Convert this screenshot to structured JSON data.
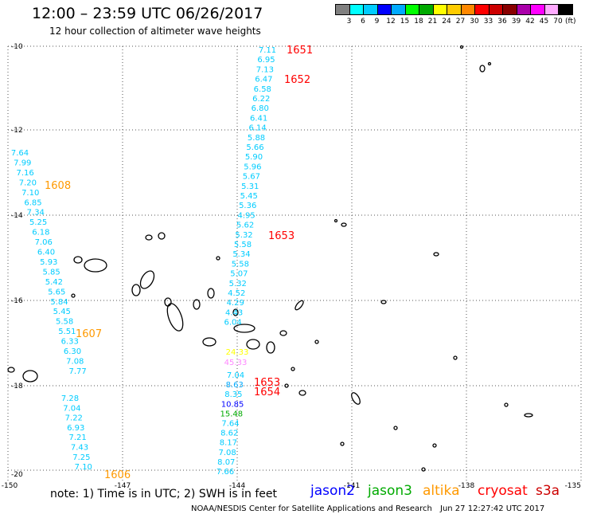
{
  "header": {
    "title": "12:00 – 23:59 UTC 06/26/2017",
    "subtitle": "12 hour collection of altimeter wave heights"
  },
  "colorbar": {
    "unit": "(ft)",
    "colors": [
      "#808080",
      "#00ffff",
      "#00ccff",
      "#0000ff",
      "#00aaff",
      "#00ff00",
      "#00aa00",
      "#ffff00",
      "#ffcc00",
      "#ff8800",
      "#ff0000",
      "#cc0000",
      "#880000",
      "#aa00aa",
      "#ff00ff",
      "#ffaaff",
      "#000000"
    ],
    "labels": [
      "3",
      "6",
      "9",
      "12",
      "15",
      "18",
      "21",
      "24",
      "27",
      "30",
      "33",
      "36",
      "39",
      "42",
      "45",
      "70"
    ]
  },
  "axes": {
    "lat_labels": [
      "-10",
      "-12",
      "-14",
      "-16",
      "-18",
      "-20"
    ],
    "lon_labels": [
      "-150",
      "-147",
      "-144",
      "-141",
      "-138",
      "-135"
    ]
  },
  "tracks": {
    "track_1652": {
      "color": "#00ccff",
      "values": [
        "7.11",
        "6.95",
        "7.13",
        "6.47",
        "6.58",
        "6.22",
        "6.80",
        "6.41",
        "6.14",
        "5.88",
        "5.66",
        "5.90",
        "5.96",
        "5.67",
        "5.31",
        "5.45",
        "5.36",
        "4.95",
        "5.62",
        "5.32",
        "5.58",
        "5.34",
        "5.58",
        "5.07",
        "5.32",
        "4.52",
        "4.29",
        "4.43",
        "6.04"
      ]
    },
    "track_1608": {
      "color": "#00ccff",
      "values": [
        "7.64",
        "7.99",
        "7.16",
        "7.20",
        "7.10",
        "6.85",
        "7.34",
        "5.25",
        "6.18",
        "7.06",
        "6.40",
        "5.93",
        "5.85",
        "5.42",
        "5.65",
        "5.84",
        "5.45",
        "5.58",
        "5.51",
        "6.33",
        "6.30",
        "7.08",
        "7.77"
      ]
    },
    "track_1606": {
      "color": "#00ccff",
      "values": [
        "7.28",
        "7.04",
        "7.22",
        "6.93",
        "7.21",
        "7.43",
        "7.25",
        "7.10"
      ]
    },
    "track_south": {
      "values": [
        {
          "v": "7.04",
          "c": "#00ccff"
        },
        {
          "v": "8.63",
          "c": "#00aaff"
        },
        {
          "v": "8.35",
          "c": "#00ccff"
        },
        {
          "v": "10.85",
          "c": "#0000ff"
        },
        {
          "v": "15.48",
          "c": "#00aa00"
        },
        {
          "v": "7.64",
          "c": "#00ccff"
        },
        {
          "v": "8.62",
          "c": "#00ccff"
        },
        {
          "v": "8.17",
          "c": "#00ccff"
        },
        {
          "v": "7.08",
          "c": "#00ccff"
        },
        {
          "v": "8.07",
          "c": "#00ccff"
        },
        {
          "v": "7.66",
          "c": "#00ccff"
        }
      ]
    },
    "special": [
      {
        "v": "24.33",
        "c": "#ffff00"
      },
      {
        "v": "45.33",
        "c": "#ff88ff"
      }
    ]
  },
  "pass_labels": [
    {
      "text": "1651",
      "c": "#ff0000"
    },
    {
      "text": "1652",
      "c": "#ff0000"
    },
    {
      "text": "1608",
      "c": "#ff9900"
    },
    {
      "text": "1653",
      "c": "#ff0000"
    },
    {
      "text": "1607",
      "c": "#ff9900"
    },
    {
      "text": "1653",
      "c": "#ff0000"
    },
    {
      "text": "1654",
      "c": "#ff0000"
    },
    {
      "text": "1606",
      "c": "#ff9900"
    }
  ],
  "footer": {
    "note": "note:  1) Time is in UTC;  2) SWH is in feet",
    "satellites": [
      {
        "name": "jason2",
        "color": "#0000ff"
      },
      {
        "name": "jason3",
        "color": "#00aa00"
      },
      {
        "name": "altika",
        "color": "#ff9900"
      },
      {
        "name": "cryosat",
        "color": "#ff0000"
      },
      {
        "name": "s3a",
        "color": "#cc0000"
      }
    ],
    "credit": "NOAA/NESDIS Center for Satellite Applications and Research",
    "timestamp": "Jun 27 12:27:42 UTC 2017"
  }
}
